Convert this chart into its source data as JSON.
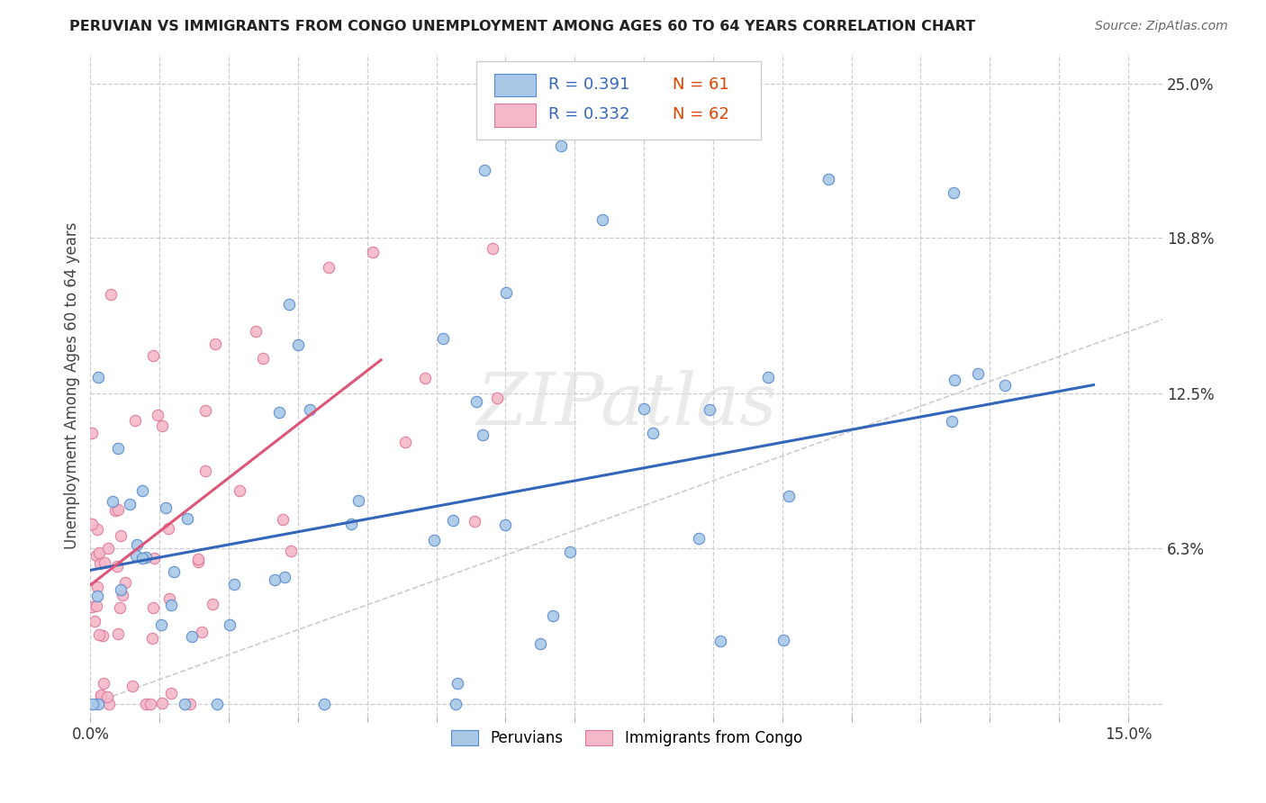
{
  "title": "PERUVIAN VS IMMIGRANTS FROM CONGO UNEMPLOYMENT AMONG AGES 60 TO 64 YEARS CORRELATION CHART",
  "source": "Source: ZipAtlas.com",
  "ylabel": "Unemployment Among Ages 60 to 64 years",
  "xlim": [
    0.0,
    0.155
  ],
  "ylim": [
    -0.005,
    0.262
  ],
  "legend_R1": "R = 0.391",
  "legend_N1": "N = 61",
  "legend_R2": "R = 0.332",
  "legend_N2": "N = 62",
  "legend_label1": "Peruvians",
  "legend_label2": "Immigrants from Congo",
  "color_blue": "#A8C8E8",
  "color_pink": "#F4B8C8",
  "edge_blue": "#5588CC",
  "edge_pink": "#DD7799",
  "trendline_blue": "#3366BB",
  "trendline_pink": "#DD5577",
  "watermark": "ZIPatlas",
  "R_color": "#3366BB",
  "N_color": "#DD4400"
}
